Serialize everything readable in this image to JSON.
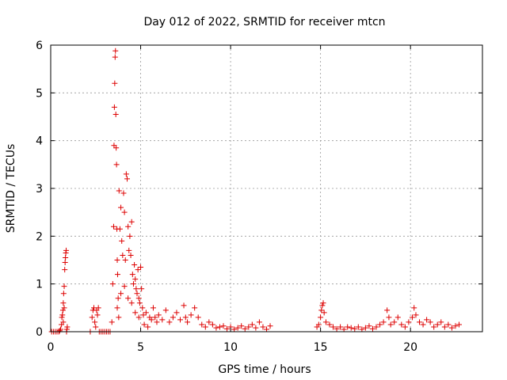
{
  "chart_data": {
    "type": "scatter",
    "title": "Day 012 of 2022, SRMTID for receiver mtcn",
    "xlabel": "GPS time / hours",
    "ylabel": "SRMTID / TECUs",
    "xlim": [
      0,
      24
    ],
    "ylim": [
      0,
      6
    ],
    "xticks": [
      0,
      5,
      10,
      15,
      20
    ],
    "yticks": [
      0,
      1,
      2,
      3,
      4,
      5,
      6
    ],
    "grid": true,
    "marker": "+",
    "color": "#dd0000",
    "series": [
      {
        "name": "SRMTID",
        "points": [
          [
            0.05,
            0.0
          ],
          [
            0.15,
            0.0
          ],
          [
            0.25,
            0.0
          ],
          [
            0.35,
            0.0
          ],
          [
            0.45,
            0.0
          ],
          [
            0.5,
            0.02
          ],
          [
            0.55,
            0.05
          ],
          [
            0.6,
            0.15
          ],
          [
            0.62,
            0.3
          ],
          [
            0.65,
            0.35
          ],
          [
            0.68,
            0.45
          ],
          [
            0.7,
            0.6
          ],
          [
            0.72,
            0.8
          ],
          [
            0.75,
            0.95
          ],
          [
            0.78,
            1.3
          ],
          [
            0.8,
            1.45
          ],
          [
            0.82,
            1.55
          ],
          [
            0.84,
            1.65
          ],
          [
            0.86,
            1.7
          ],
          [
            0.88,
            0.0
          ],
          [
            0.9,
            0.05
          ],
          [
            0.92,
            0.1
          ],
          [
            0.7,
            0.2
          ],
          [
            0.75,
            0.5
          ],
          [
            2.2,
            0.0
          ],
          [
            2.3,
            0.3
          ],
          [
            2.35,
            0.45
          ],
          [
            2.4,
            0.5
          ],
          [
            2.45,
            0.2
          ],
          [
            2.5,
            0.1
          ],
          [
            2.55,
            0.45
          ],
          [
            2.6,
            0.35
          ],
          [
            2.65,
            0.5
          ],
          [
            2.7,
            0.0
          ],
          [
            2.8,
            0.0
          ],
          [
            2.9,
            0.0
          ],
          [
            3.0,
            0.0
          ],
          [
            3.1,
            0.0
          ],
          [
            3.2,
            0.0
          ],
          [
            3.3,
            0.0
          ],
          [
            3.4,
            0.2
          ],
          [
            3.45,
            1.0
          ],
          [
            3.5,
            2.2
          ],
          [
            3.52,
            3.9
          ],
          [
            3.54,
            4.7
          ],
          [
            3.56,
            5.2
          ],
          [
            3.58,
            5.75
          ],
          [
            3.6,
            5.88
          ],
          [
            3.62,
            4.55
          ],
          [
            3.64,
            3.85
          ],
          [
            3.66,
            3.5
          ],
          [
            3.68,
            2.15
          ],
          [
            3.7,
            1.5
          ],
          [
            3.72,
            1.2
          ],
          [
            3.75,
            0.7
          ],
          [
            3.78,
            0.3
          ],
          [
            3.8,
            2.95
          ],
          [
            3.85,
            2.15
          ],
          [
            3.9,
            2.6
          ],
          [
            3.95,
            1.9
          ],
          [
            4.0,
            1.6
          ],
          [
            4.05,
            2.9
          ],
          [
            4.1,
            2.5
          ],
          [
            4.15,
            1.5
          ],
          [
            4.2,
            3.3
          ],
          [
            4.25,
            3.2
          ],
          [
            4.3,
            2.2
          ],
          [
            4.35,
            1.7
          ],
          [
            4.4,
            2.0
          ],
          [
            4.45,
            1.6
          ],
          [
            4.5,
            2.3
          ],
          [
            4.55,
            1.2
          ],
          [
            4.6,
            1.0
          ],
          [
            4.65,
            1.4
          ],
          [
            4.7,
            1.1
          ],
          [
            4.75,
            0.9
          ],
          [
            4.8,
            0.8
          ],
          [
            4.85,
            1.3
          ],
          [
            4.9,
            0.7
          ],
          [
            4.95,
            0.6
          ],
          [
            5.0,
            1.35
          ],
          [
            5.05,
            0.9
          ],
          [
            5.1,
            0.5
          ],
          [
            3.7,
            0.5
          ],
          [
            3.9,
            0.8
          ],
          [
            4.1,
            0.95
          ],
          [
            4.3,
            0.7
          ],
          [
            4.5,
            0.6
          ],
          [
            4.7,
            0.4
          ],
          [
            4.9,
            0.3
          ],
          [
            5.15,
            0.35
          ],
          [
            5.2,
            0.15
          ],
          [
            5.3,
            0.4
          ],
          [
            5.4,
            0.1
          ],
          [
            5.5,
            0.3
          ],
          [
            5.6,
            0.25
          ],
          [
            5.7,
            0.5
          ],
          [
            5.8,
            0.3
          ],
          [
            5.9,
            0.2
          ],
          [
            6.0,
            0.35
          ],
          [
            6.2,
            0.25
          ],
          [
            6.4,
            0.45
          ],
          [
            6.6,
            0.2
          ],
          [
            6.8,
            0.3
          ],
          [
            7.0,
            0.4
          ],
          [
            7.2,
            0.25
          ],
          [
            7.4,
            0.55
          ],
          [
            7.5,
            0.3
          ],
          [
            7.6,
            0.2
          ],
          [
            7.8,
            0.35
          ],
          [
            8.0,
            0.5
          ],
          [
            8.2,
            0.3
          ],
          [
            8.4,
            0.15
          ],
          [
            8.6,
            0.1
          ],
          [
            8.8,
            0.2
          ],
          [
            9.0,
            0.15
          ],
          [
            9.2,
            0.08
          ],
          [
            9.4,
            0.1
          ],
          [
            9.6,
            0.12
          ],
          [
            9.8,
            0.06
          ],
          [
            10.0,
            0.1
          ],
          [
            10.2,
            0.05
          ],
          [
            10.4,
            0.08
          ],
          [
            10.6,
            0.12
          ],
          [
            10.8,
            0.06
          ],
          [
            11.0,
            0.1
          ],
          [
            11.2,
            0.15
          ],
          [
            11.4,
            0.08
          ],
          [
            11.6,
            0.2
          ],
          [
            11.8,
            0.1
          ],
          [
            12.0,
            0.05
          ],
          [
            12.2,
            0.12
          ],
          [
            14.8,
            0.1
          ],
          [
            14.9,
            0.15
          ],
          [
            15.0,
            0.3
          ],
          [
            15.05,
            0.45
          ],
          [
            15.1,
            0.55
          ],
          [
            15.15,
            0.6
          ],
          [
            15.2,
            0.4
          ],
          [
            15.3,
            0.2
          ],
          [
            15.5,
            0.15
          ],
          [
            15.7,
            0.1
          ],
          [
            15.9,
            0.06
          ],
          [
            16.1,
            0.1
          ],
          [
            16.3,
            0.05
          ],
          [
            16.5,
            0.1
          ],
          [
            16.7,
            0.08
          ],
          [
            16.9,
            0.06
          ],
          [
            17.1,
            0.1
          ],
          [
            17.3,
            0.05
          ],
          [
            17.5,
            0.08
          ],
          [
            17.7,
            0.12
          ],
          [
            17.9,
            0.06
          ],
          [
            18.1,
            0.1
          ],
          [
            18.3,
            0.15
          ],
          [
            18.5,
            0.2
          ],
          [
            18.7,
            0.45
          ],
          [
            18.8,
            0.3
          ],
          [
            18.9,
            0.15
          ],
          [
            19.1,
            0.2
          ],
          [
            19.3,
            0.3
          ],
          [
            19.5,
            0.15
          ],
          [
            19.7,
            0.1
          ],
          [
            19.9,
            0.2
          ],
          [
            20.1,
            0.3
          ],
          [
            20.2,
            0.5
          ],
          [
            20.3,
            0.35
          ],
          [
            20.5,
            0.2
          ],
          [
            20.7,
            0.15
          ],
          [
            20.9,
            0.25
          ],
          [
            21.1,
            0.2
          ],
          [
            21.3,
            0.1
          ],
          [
            21.5,
            0.15
          ],
          [
            21.7,
            0.2
          ],
          [
            21.9,
            0.1
          ],
          [
            22.1,
            0.15
          ],
          [
            22.3,
            0.08
          ],
          [
            22.5,
            0.12
          ],
          [
            22.7,
            0.15
          ]
        ]
      }
    ]
  }
}
